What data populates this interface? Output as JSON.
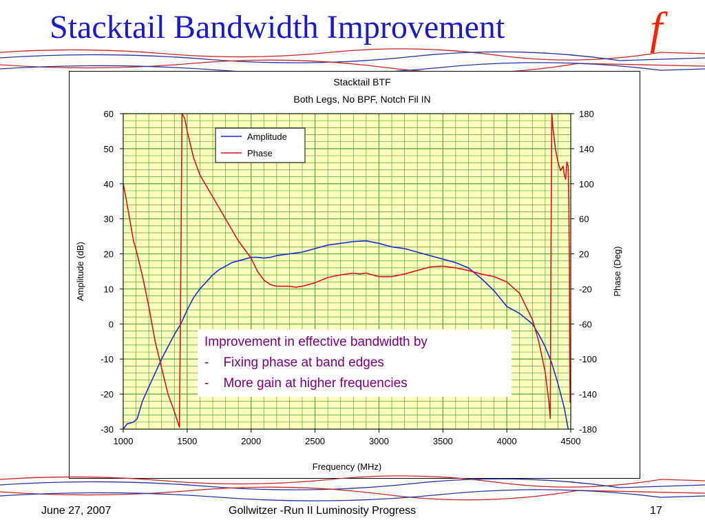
{
  "slide": {
    "title": "Stacktail Bandwidth Improvement",
    "logo_glyph": "f",
    "footer": {
      "date": "June 27, 2007",
      "center": "Gollwitzer -Run II Luminosity Progress",
      "page": "17"
    }
  },
  "colors": {
    "title": "#1a1acc",
    "logo": "#ff2200",
    "plot_bg": "#ffffc0",
    "grid": "#4fae32",
    "amplitude": "#1a2bd6",
    "phase": "#e0101a",
    "annotation_text": "#800080"
  },
  "chart_data": {
    "type": "line",
    "title": "Stacktail BTF",
    "subtitle": "Both Legs, No BPF, Notch Fil IN",
    "xlabel": "Frequency (MHz)",
    "ylabel": "Amplitude (dB)",
    "y2label": "Phase (Deg)",
    "xlim": [
      1000,
      4500
    ],
    "ylim": [
      -30,
      60
    ],
    "y2lim": [
      -180,
      180
    ],
    "x_ticks": [
      1000,
      1500,
      2000,
      2500,
      3000,
      3500,
      4000,
      4500
    ],
    "y_ticks": [
      -30,
      -20,
      -10,
      0,
      10,
      20,
      30,
      40,
      50,
      60
    ],
    "y2_ticks": [
      -180,
      -140,
      -100,
      -60,
      -20,
      20,
      60,
      100,
      140,
      180
    ],
    "grid": true,
    "legend_position": "top-center",
    "series": [
      {
        "name": "Amplitude",
        "axis": "left",
        "color": "#1a2bd6",
        "points": [
          [
            1000,
            -30
          ],
          [
            1030,
            -28.5
          ],
          [
            1080,
            -28
          ],
          [
            1110,
            -27
          ],
          [
            1150,
            -22
          ],
          [
            1200,
            -18
          ],
          [
            1250,
            -14
          ],
          [
            1300,
            -10
          ],
          [
            1350,
            -6.5
          ],
          [
            1400,
            -3
          ],
          [
            1450,
            0
          ],
          [
            1500,
            4
          ],
          [
            1550,
            7.5
          ],
          [
            1600,
            10
          ],
          [
            1650,
            12
          ],
          [
            1700,
            14
          ],
          [
            1750,
            15.5
          ],
          [
            1800,
            16.5
          ],
          [
            1850,
            17.5
          ],
          [
            1900,
            18
          ],
          [
            1950,
            18.5
          ],
          [
            2000,
            19
          ],
          [
            2050,
            19
          ],
          [
            2100,
            18.8
          ],
          [
            2150,
            19
          ],
          [
            2200,
            19.5
          ],
          [
            2300,
            20
          ],
          [
            2400,
            20.5
          ],
          [
            2500,
            21.5
          ],
          [
            2600,
            22.5
          ],
          [
            2700,
            23
          ],
          [
            2800,
            23.5
          ],
          [
            2900,
            23.7
          ],
          [
            3000,
            23
          ],
          [
            3100,
            22
          ],
          [
            3200,
            21.5
          ],
          [
            3300,
            20.5
          ],
          [
            3400,
            19.5
          ],
          [
            3500,
            18.5
          ],
          [
            3600,
            17.5
          ],
          [
            3700,
            16
          ],
          [
            3800,
            13
          ],
          [
            3900,
            9.5
          ],
          [
            4000,
            5
          ],
          [
            4100,
            3
          ],
          [
            4200,
            0
          ],
          [
            4250,
            -3
          ],
          [
            4300,
            -6.5
          ],
          [
            4350,
            -11
          ],
          [
            4400,
            -17
          ],
          [
            4450,
            -24
          ],
          [
            4480,
            -30
          ]
        ]
      },
      {
        "name": "Phase",
        "axis": "right",
        "color": "#e0101a",
        "points": [
          [
            1000,
            100
          ],
          [
            1020,
            85
          ],
          [
            1050,
            60
          ],
          [
            1080,
            35
          ],
          [
            1100,
            25
          ],
          [
            1150,
            -5
          ],
          [
            1200,
            -40
          ],
          [
            1250,
            -80
          ],
          [
            1300,
            -110
          ],
          [
            1350,
            -140
          ],
          [
            1400,
            -160
          ],
          [
            1440,
            -178
          ],
          [
            1440,
            -170
          ],
          [
            1445,
            -100
          ],
          [
            1450,
            0
          ],
          [
            1460,
            180
          ],
          [
            1480,
            175
          ],
          [
            1500,
            160
          ],
          [
            1550,
            130
          ],
          [
            1600,
            110
          ],
          [
            1700,
            85
          ],
          [
            1800,
            60
          ],
          [
            1900,
            35
          ],
          [
            2000,
            15
          ],
          [
            2050,
            0
          ],
          [
            2100,
            -10
          ],
          [
            2150,
            -15
          ],
          [
            2200,
            -17
          ],
          [
            2250,
            -17
          ],
          [
            2300,
            -17
          ],
          [
            2350,
            -18
          ],
          [
            2400,
            -17
          ],
          [
            2500,
            -13
          ],
          [
            2600,
            -7
          ],
          [
            2700,
            -4
          ],
          [
            2800,
            -2
          ],
          [
            2850,
            -3
          ],
          [
            2900,
            -2
          ],
          [
            2950,
            -4
          ],
          [
            3000,
            -6
          ],
          [
            3100,
            -6
          ],
          [
            3200,
            -3
          ],
          [
            3300,
            1
          ],
          [
            3400,
            5
          ],
          [
            3500,
            6
          ],
          [
            3600,
            4
          ],
          [
            3700,
            1
          ],
          [
            3800,
            -3
          ],
          [
            3900,
            -6
          ],
          [
            4000,
            -12
          ],
          [
            4100,
            -25
          ],
          [
            4200,
            -55
          ],
          [
            4250,
            -80
          ],
          [
            4300,
            -115
          ],
          [
            4330,
            -150
          ],
          [
            4340,
            -168
          ],
          [
            4342,
            -100
          ],
          [
            4345,
            0
          ],
          [
            4350,
            130
          ],
          [
            4352,
            180
          ],
          [
            4360,
            165
          ],
          [
            4380,
            140
          ],
          [
            4400,
            125
          ],
          [
            4420,
            115
          ],
          [
            4440,
            120
          ],
          [
            4450,
            110
          ],
          [
            4460,
            105
          ],
          [
            4470,
            125
          ],
          [
            4480,
            120
          ],
          [
            4485,
            80
          ],
          [
            4490,
            0
          ],
          [
            4492,
            -100
          ],
          [
            4495,
            -150
          ]
        ]
      }
    ],
    "annotation": {
      "lines": [
        "Improvement in effective bandwidth by",
        "-    Fixing phase at band edges",
        "-    More gain at higher frequencies"
      ]
    }
  }
}
